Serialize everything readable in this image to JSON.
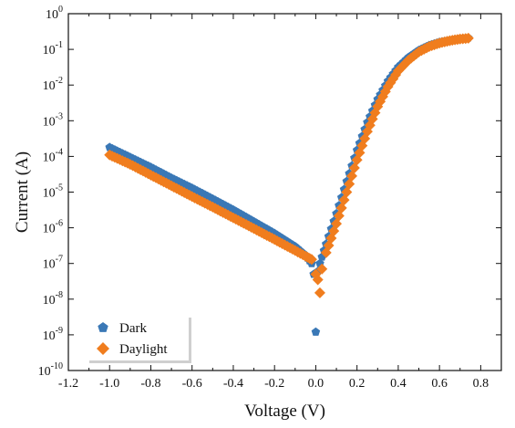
{
  "chart_data": {
    "type": "scatter",
    "xlabel": "Voltage (V)",
    "ylabel": "Current (A)",
    "xlim": [
      -1.2,
      0.9
    ],
    "ylim_log10": [
      -10,
      0
    ],
    "yscale": "log",
    "xticks": [
      "-1.2",
      "-1.0",
      "-0.8",
      "-0.6",
      "-0.4",
      "-0.2",
      "0.0",
      "0.2",
      "0.4",
      "0.6",
      "0.8"
    ],
    "yticks": [
      {
        "base": "10",
        "exp": "0"
      },
      {
        "base": "10",
        "exp": "-1"
      },
      {
        "base": "10",
        "exp": "-2"
      },
      {
        "base": "10",
        "exp": "-3"
      },
      {
        "base": "10",
        "exp": "-4"
      },
      {
        "base": "10",
        "exp": "-5"
      },
      {
        "base": "10",
        "exp": "-6"
      },
      {
        "base": "10",
        "exp": "-7"
      },
      {
        "base": "10",
        "exp": "-8"
      },
      {
        "base": "10",
        "exp": "-9"
      },
      {
        "base": "10",
        "exp": "-10"
      }
    ],
    "legend_position": "bottom-left",
    "grid": false,
    "series": [
      {
        "name": "Dark",
        "color": "#3a78b6",
        "marker": "pentagon",
        "points": [
          [
            -1.0,
            0.00018
          ],
          [
            -0.9,
            9.5e-05
          ],
          [
            -0.8,
            5e-05
          ],
          [
            -0.7,
            2.5e-05
          ],
          [
            -0.6,
            1.3e-05
          ],
          [
            -0.5,
            6.5e-06
          ],
          [
            -0.4,
            3.2e-06
          ],
          [
            -0.3,
            1.5e-06
          ],
          [
            -0.2,
            7e-07
          ],
          [
            -0.1,
            3e-07
          ],
          [
            -0.05,
            1.7e-07
          ],
          [
            -0.02,
            1e-07
          ],
          [
            -0.01,
            5e-08
          ],
          [
            0.0,
            1.2e-09
          ],
          [
            0.01,
            6e-08
          ],
          [
            0.02,
            1e-07
          ],
          [
            0.05,
            3.5e-07
          ],
          [
            0.1,
            2.5e-06
          ],
          [
            0.15,
            2e-05
          ],
          [
            0.2,
            0.00015
          ],
          [
            0.25,
            0.0009
          ],
          [
            0.3,
            0.004
          ],
          [
            0.35,
            0.013
          ],
          [
            0.4,
            0.032
          ],
          [
            0.45,
            0.06
          ],
          [
            0.5,
            0.095
          ],
          [
            0.55,
            0.13
          ],
          [
            0.6,
            0.16
          ],
          [
            0.65,
            0.18
          ],
          [
            0.7,
            0.2
          ],
          [
            0.74,
            0.21
          ]
        ]
      },
      {
        "name": "Daylight",
        "color": "#f07d1e",
        "marker": "diamond",
        "points": [
          [
            -1.0,
            0.00011
          ],
          [
            -0.9,
            6e-05
          ],
          [
            -0.8,
            3e-05
          ],
          [
            -0.7,
            1.5e-05
          ],
          [
            -0.6,
            7.5e-06
          ],
          [
            -0.5,
            3.8e-06
          ],
          [
            -0.4,
            1.9e-06
          ],
          [
            -0.3,
            9.5e-07
          ],
          [
            -0.2,
            4.7e-07
          ],
          [
            -0.1,
            2.3e-07
          ],
          [
            -0.05,
            1.6e-07
          ],
          [
            -0.02,
            1.3e-07
          ],
          [
            0.0,
            5e-08
          ],
          [
            0.01,
            3.5e-08
          ],
          [
            0.02,
            1.5e-08
          ],
          [
            0.03,
            7e-08
          ],
          [
            0.05,
            2e-07
          ],
          [
            0.1,
            1.3e-06
          ],
          [
            0.15,
            1e-05
          ],
          [
            0.2,
            8e-05
          ],
          [
            0.25,
            0.0005
          ],
          [
            0.3,
            0.0025
          ],
          [
            0.35,
            0.009
          ],
          [
            0.4,
            0.025
          ],
          [
            0.45,
            0.05
          ],
          [
            0.5,
            0.085
          ],
          [
            0.55,
            0.12
          ],
          [
            0.6,
            0.15
          ],
          [
            0.65,
            0.175
          ],
          [
            0.7,
            0.195
          ],
          [
            0.74,
            0.205
          ]
        ]
      }
    ]
  }
}
